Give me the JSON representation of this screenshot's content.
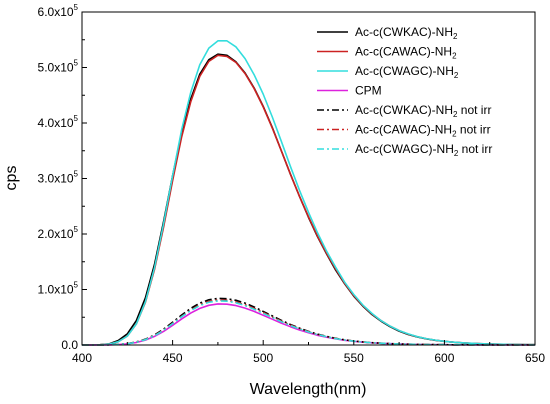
{
  "chart_data": {
    "type": "line",
    "xlabel": "Wavelength(nm)",
    "ylabel": "cps",
    "xlim": [
      400,
      650
    ],
    "ylim": [
      0,
      600000
    ],
    "x_ticks": [
      {
        "value": 400,
        "label": "400"
      },
      {
        "value": 450,
        "label": "450"
      },
      {
        "value": 500,
        "label": "500"
      },
      {
        "value": 550,
        "label": "550"
      },
      {
        "value": 600,
        "label": "600"
      },
      {
        "value": 650,
        "label": "650"
      }
    ],
    "y_ticks": [
      {
        "value": 0,
        "mantissa": "0.0",
        "exponent": ""
      },
      {
        "value": 100000,
        "mantissa": "1.0x10",
        "exponent": "5"
      },
      {
        "value": 200000,
        "mantissa": "2.0x10",
        "exponent": "5"
      },
      {
        "value": 300000,
        "mantissa": "3.0x10",
        "exponent": "5"
      },
      {
        "value": 400000,
        "mantissa": "4.0x10",
        "exponent": "5"
      },
      {
        "value": 500000,
        "mantissa": "5.0x10",
        "exponent": "5"
      },
      {
        "value": 600000,
        "mantissa": "6.0x10",
        "exponent": "5"
      }
    ],
    "grid": false,
    "legend_position": "top-right",
    "x": [
      400,
      405,
      410,
      415,
      420,
      425,
      430,
      435,
      440,
      445,
      450,
      455,
      460,
      465,
      470,
      475,
      480,
      485,
      490,
      495,
      500,
      505,
      510,
      515,
      520,
      525,
      530,
      535,
      540,
      545,
      550,
      555,
      560,
      565,
      570,
      575,
      580,
      585,
      590,
      595,
      600,
      605,
      610,
      615,
      620,
      625,
      630,
      635,
      640,
      645,
      650
    ],
    "series": [
      {
        "name_main": "Ac-c(CWKAC)-NH",
        "name_sub": "2",
        "name_suffix": "",
        "color": "#000000",
        "dash": "solid",
        "values": [
          0,
          0,
          500,
          2000,
          8000,
          20000,
          44000,
          85000,
          145000,
          222000,
          305000,
          382000,
          443000,
          488000,
          514000,
          524000,
          522000,
          510000,
          490000,
          463000,
          430000,
          392000,
          350000,
          308000,
          268000,
          230000,
          195000,
          164000,
          135000,
          110000,
          88000,
          70000,
          55000,
          43000,
          33000,
          25000,
          19000,
          14500,
          11000,
          8500,
          6500,
          5000,
          3800,
          2900,
          2200,
          1700,
          1300,
          1000,
          800,
          600,
          500
        ]
      },
      {
        "name_main": "Ac-c(CAWAC)-NH",
        "name_sub": "2",
        "name_suffix": "",
        "color": "#cc2222",
        "dash": "solid",
        "values": [
          0,
          0,
          300,
          1500,
          6000,
          16000,
          38000,
          77000,
          136000,
          212000,
          296000,
          375000,
          438000,
          484000,
          511000,
          522000,
          520000,
          509000,
          489000,
          462000,
          429000,
          391000,
          350000,
          308000,
          268000,
          231000,
          196000,
          165000,
          137000,
          111000,
          89000,
          71000,
          56000,
          44000,
          34000,
          26000,
          19500,
          15000,
          11500,
          8800,
          6700,
          5100,
          3900,
          3000,
          2300,
          1800,
          1400,
          1000,
          800,
          600,
          500
        ]
      },
      {
        "name_main": "Ac-c(CWAGC)-NH",
        "name_sub": "2",
        "name_suffix": "",
        "color": "#33dddd",
        "dash": "solid",
        "values": [
          0,
          0,
          300,
          1500,
          6000,
          16000,
          38000,
          78000,
          139000,
          218000,
          305000,
          388000,
          455000,
          505000,
          535000,
          548000,
          548000,
          537000,
          516000,
          487000,
          452000,
          411000,
          367000,
          322000,
          279000,
          239000,
          202000,
          169000,
          140000,
          113000,
          91000,
          72000,
          57000,
          44000,
          34000,
          26000,
          20000,
          15000,
          11500,
          8800,
          6700,
          5100,
          3900,
          3000,
          2300,
          1800,
          1400,
          1000,
          800,
          600,
          500
        ]
      },
      {
        "name_main": "CPM",
        "name_sub": "",
        "name_suffix": "",
        "color": "#dd22dd",
        "dash": "solid",
        "values": [
          0,
          0,
          0,
          200,
          800,
          2000,
          4500,
          8800,
          15500,
          24500,
          35500,
          47000,
          57500,
          66000,
          71500,
          74000,
          73500,
          71000,
          66500,
          60500,
          53500,
          46500,
          39500,
          33000,
          27000,
          22000,
          17500,
          14000,
          11000,
          8500,
          6600,
          5100,
          3900,
          3000,
          2300,
          1800,
          1400,
          1100,
          800,
          600,
          500,
          400,
          300,
          250,
          200,
          150,
          100,
          100,
          50,
          50,
          0
        ]
      },
      {
        "name_main": "Ac-c(CWKAC)-NH",
        "name_sub": "2",
        "name_suffix": " not irr",
        "color": "#000000",
        "dash": "dashdot",
        "values": [
          0,
          0,
          0,
          300,
          1000,
          2500,
          5500,
          10500,
          18000,
          28500,
          41000,
          54000,
          66000,
          75500,
          81500,
          84000,
          83500,
          80500,
          75500,
          68500,
          60500,
          52500,
          44500,
          37000,
          30500,
          24500,
          19500,
          15500,
          12000,
          9300,
          7200,
          5500,
          4200,
          3200,
          2500,
          1900,
          1500,
          1100,
          900,
          700,
          500,
          400,
          300,
          250,
          200,
          150,
          100,
          100,
          50,
          50,
          0
        ]
      },
      {
        "name_main": "Ac-c(CAWAC)-NH",
        "name_sub": "2",
        "name_suffix": " not irr",
        "color": "#cc2222",
        "dash": "dashdot",
        "values": [
          0,
          0,
          0,
          250,
          900,
          2300,
          5000,
          9800,
          17000,
          27000,
          39000,
          51500,
          63000,
          72500,
          78500,
          81000,
          80500,
          77500,
          72500,
          66000,
          58500,
          50500,
          43000,
          36000,
          29500,
          24000,
          19000,
          15000,
          11700,
          9000,
          7000,
          5400,
          4100,
          3100,
          2400,
          1850,
          1400,
          1100,
          850,
          650,
          500,
          400,
          300,
          250,
          200,
          150,
          100,
          100,
          50,
          50,
          0
        ]
      },
      {
        "name_main": "Ac-c(CWAGC)-NH",
        "name_sub": "2",
        "name_suffix": " not irr",
        "color": "#33dddd",
        "dash": "dashdot",
        "values": [
          0,
          0,
          0,
          250,
          850,
          2200,
          4900,
          9600,
          16700,
          26500,
          38500,
          51000,
          62000,
          71000,
          77000,
          79500,
          79000,
          76000,
          71000,
          64500,
          57000,
          49500,
          42000,
          35000,
          29000,
          23500,
          18800,
          14800,
          11500,
          8900,
          6900,
          5300,
          4000,
          3100,
          2400,
          1800,
          1400,
          1050,
          800,
          650,
          500,
          400,
          300,
          250,
          200,
          150,
          100,
          100,
          50,
          50,
          0
        ]
      }
    ]
  }
}
